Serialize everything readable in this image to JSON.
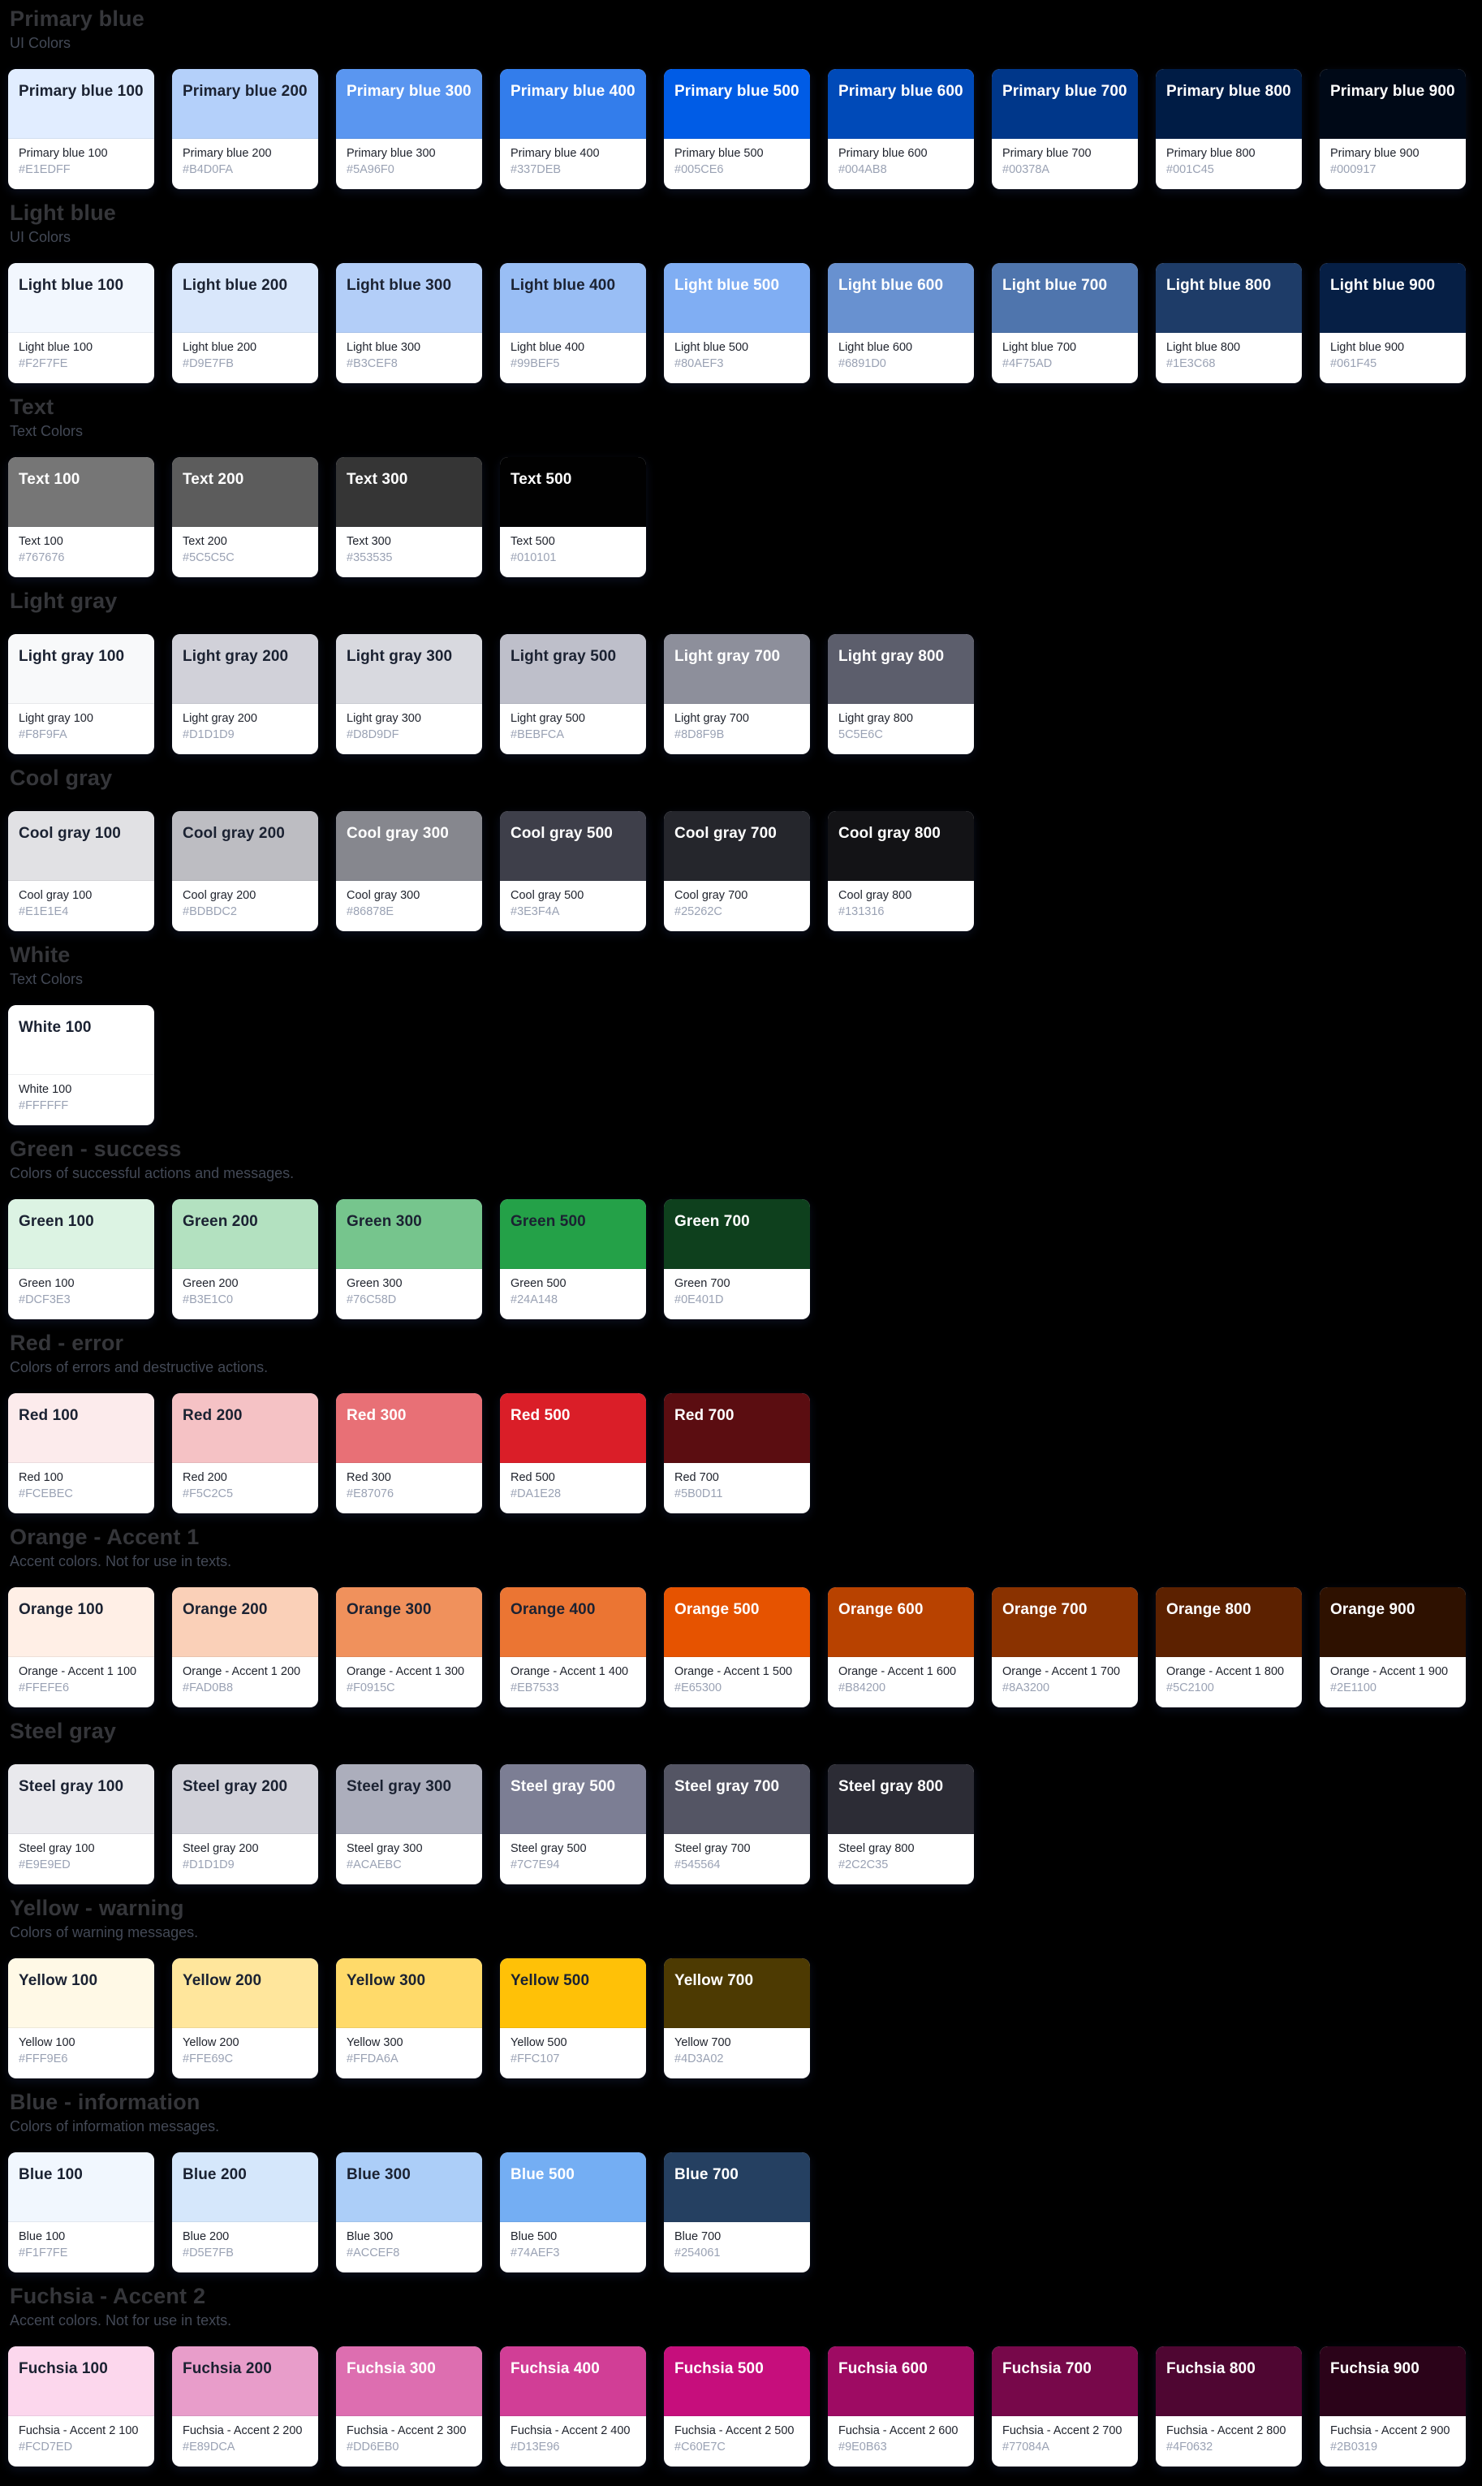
{
  "page": {
    "background": "#000000"
  },
  "sections": [
    {
      "title": "Primary blue",
      "subtitle": "UI Colors",
      "swatches": [
        {
          "title": "Primary blue 100",
          "name": "Primary blue 100",
          "hex": "#E1EDFF",
          "label_style": "dark"
        },
        {
          "title": "Primary blue 200",
          "name": "Primary blue 200",
          "hex": "#B4D0FA",
          "label_style": "dark"
        },
        {
          "title": "Primary blue 300",
          "name": "Primary blue 300",
          "hex": "#5A96F0",
          "label_style": "light"
        },
        {
          "title": "Primary blue 400",
          "name": "Primary blue 400",
          "hex": "#337DEB",
          "label_style": "light"
        },
        {
          "title": "Primary blue 500",
          "name": "Primary blue 500",
          "hex": "#005CE6",
          "label_style": "light"
        },
        {
          "title": "Primary blue 600",
          "name": "Primary blue 600",
          "hex": "#004AB8",
          "label_style": "light"
        },
        {
          "title": "Primary blue 700",
          "name": "Primary blue 700",
          "hex": "#00378A",
          "label_style": "light"
        },
        {
          "title": "Primary blue 800",
          "name": "Primary blue 800",
          "hex": "#001C45",
          "label_style": "light"
        },
        {
          "title": "Primary blue 900",
          "name": "Primary blue 900",
          "hex": "#000917",
          "label_style": "light"
        }
      ]
    },
    {
      "title": "Light blue",
      "subtitle": "UI Colors",
      "swatches": [
        {
          "title": "Light blue 100",
          "name": "Light blue 100",
          "hex": "#F2F7FE",
          "label_style": "dark"
        },
        {
          "title": "Light blue 200",
          "name": "Light blue 200",
          "hex": "#D9E7FB",
          "label_style": "dark"
        },
        {
          "title": "Light blue 300",
          "name": "Light blue 300",
          "hex": "#B3CEF8",
          "label_style": "dark"
        },
        {
          "title": "Light blue 400",
          "name": "Light blue 400",
          "hex": "#99BEF5",
          "label_style": "dark"
        },
        {
          "title": "Light blue 500",
          "name": "Light blue 500",
          "hex": "#80AEF3",
          "label_style": "light"
        },
        {
          "title": "Light blue 600",
          "name": "Light blue 600",
          "hex": "#6891D0",
          "label_style": "light"
        },
        {
          "title": "Light blue 700",
          "name": "Light blue 700",
          "hex": "#4F75AD",
          "label_style": "light"
        },
        {
          "title": "Light blue 800",
          "name": "Light blue 800",
          "hex": "#1E3C68",
          "label_style": "light"
        },
        {
          "title": "Light blue 900",
          "name": "Light blue 900",
          "hex": "#061F45",
          "label_style": "light"
        }
      ]
    },
    {
      "title": "Text",
      "subtitle": "Text Colors",
      "swatches": [
        {
          "title": "Text 100",
          "name": "Text 100",
          "hex": "#767676",
          "label_style": "light"
        },
        {
          "title": "Text 200",
          "name": "Text 200",
          "hex": "#5C5C5C",
          "label_style": "light"
        },
        {
          "title": "Text 300",
          "name": "Text 300",
          "hex": "#353535",
          "label_style": "light"
        },
        {
          "title": "Text 500",
          "name": "Text 500",
          "hex": "#010101",
          "label_style": "light"
        }
      ]
    },
    {
      "title": "Light gray",
      "subtitle": null,
      "swatches": [
        {
          "title": "Light gray 100",
          "name": "Light gray 100",
          "hex": "#F8F9FA",
          "label_style": "dark"
        },
        {
          "title": "Light gray 200",
          "name": "Light gray 200",
          "hex": "#D1D1D9",
          "label_style": "dark"
        },
        {
          "title": "Light gray 300",
          "name": "Light gray 300",
          "hex": "#D8D9DF",
          "label_style": "dark"
        },
        {
          "title": "Light gray 500",
          "name": "Light gray 500",
          "hex": "#BEBFCA",
          "label_style": "dark"
        },
        {
          "title": "Light gray 700",
          "name": "Light gray 700",
          "hex": "#8D8F9B",
          "label_style": "light"
        },
        {
          "title": "Light gray 800",
          "name": "Light gray 800",
          "hex": "5C5E6C",
          "label_style": "light"
        }
      ]
    },
    {
      "title": "Cool gray",
      "subtitle": null,
      "swatches": [
        {
          "title": "Cool gray 100",
          "name": "Cool gray 100",
          "hex": "#E1E1E4",
          "label_style": "dark"
        },
        {
          "title": "Cool gray 200",
          "name": "Cool gray 200",
          "hex": "#BDBDC2",
          "label_style": "dark"
        },
        {
          "title": "Cool gray 300",
          "name": "Cool gray 300",
          "hex": "#86878E",
          "label_style": "light"
        },
        {
          "title": "Cool gray 500",
          "name": "Cool gray 500",
          "hex": "#3E3F4A",
          "label_style": "light"
        },
        {
          "title": "Cool gray 700",
          "name": "Cool gray 700",
          "hex": "#25262C",
          "label_style": "light"
        },
        {
          "title": "Cool gray 800",
          "name": "Cool gray 800",
          "hex": "#131316",
          "label_style": "light"
        }
      ]
    },
    {
      "title": "White",
      "subtitle": "Text Colors",
      "swatches": [
        {
          "title": "White 100",
          "name": "White 100",
          "hex": "#FFFFFF",
          "label_style": "dark"
        }
      ]
    },
    {
      "title": "Green - success",
      "subtitle": "Colors of successful actions and messages.",
      "swatches": [
        {
          "title": "Green 100",
          "name": "Green 100",
          "hex": "#DCF3E3",
          "label_style": "dark"
        },
        {
          "title": "Green 200",
          "name": "Green 200",
          "hex": "#B3E1C0",
          "label_style": "dark"
        },
        {
          "title": "Green 300",
          "name": "Green 300",
          "hex": "#76C58D",
          "label_style": "dark"
        },
        {
          "title": "Green 500",
          "name": "Green 500",
          "hex": "#24A148",
          "label_style": "dark"
        },
        {
          "title": "Green 700",
          "name": "Green 700",
          "hex": "#0E401D",
          "label_style": "light"
        }
      ]
    },
    {
      "title": "Red - error",
      "subtitle": "Colors of errors and destructive actions.",
      "swatches": [
        {
          "title": "Red 100",
          "name": "Red 100",
          "hex": "#FCEBEC",
          "label_style": "dark"
        },
        {
          "title": "Red 200",
          "name": "Red 200",
          "hex": "#F5C2C5",
          "label_style": "dark"
        },
        {
          "title": "Red 300",
          "name": "Red 300",
          "hex": "#E87076",
          "label_style": "light"
        },
        {
          "title": "Red 500",
          "name": "Red 500",
          "hex": "#DA1E28",
          "label_style": "light"
        },
        {
          "title": "Red 700",
          "name": "Red 700",
          "hex": "#5B0D11",
          "label_style": "light"
        }
      ]
    },
    {
      "title": "Orange - Accent 1",
      "subtitle": "Accent colors. Not for use in texts.",
      "swatches": [
        {
          "title": "Orange 100",
          "name": "Orange - Accent 1 100",
          "hex": "#FFEFE6",
          "label_style": "dark"
        },
        {
          "title": "Orange 200",
          "name": "Orange - Accent 1 200",
          "hex": "#FAD0B8",
          "label_style": "dark"
        },
        {
          "title": "Orange 300",
          "name": "Orange - Accent 1 300",
          "hex": "#F0915C",
          "label_style": "dark"
        },
        {
          "title": "Orange 400",
          "name": "Orange - Accent 1 400",
          "hex": "#EB7533",
          "label_style": "dark"
        },
        {
          "title": "Orange 500",
          "name": "Orange - Accent 1 500",
          "hex": "#E65300",
          "label_style": "light"
        },
        {
          "title": "Orange 600",
          "name": "Orange - Accent 1 600",
          "hex": "#B84200",
          "label_style": "light"
        },
        {
          "title": "Orange 700",
          "name": "Orange - Accent 1 700",
          "hex": "#8A3200",
          "label_style": "light"
        },
        {
          "title": "Orange 800",
          "name": "Orange - Accent 1 800",
          "hex": "#5C2100",
          "label_style": "light"
        },
        {
          "title": "Orange 900",
          "name": "Orange - Accent 1 900",
          "hex": "#2E1100",
          "label_style": "light"
        }
      ]
    },
    {
      "title": "Steel gray",
      "subtitle": null,
      "swatches": [
        {
          "title": "Steel gray 100",
          "name": "Steel gray 100",
          "hex": "#E9E9ED",
          "label_style": "dark"
        },
        {
          "title": "Steel gray 200",
          "name": "Steel gray 200",
          "hex": "#D1D1D9",
          "label_style": "dark"
        },
        {
          "title": "Steel gray 300",
          "name": "Steel gray 300",
          "hex": "#ACAEBC",
          "label_style": "dark"
        },
        {
          "title": "Steel gray 500",
          "name": "Steel gray 500",
          "hex": "#7C7E94",
          "label_style": "light"
        },
        {
          "title": "Steel gray 700",
          "name": "Steel gray 700",
          "hex": "#545564",
          "label_style": "light"
        },
        {
          "title": "Steel gray 800",
          "name": "Steel gray 800",
          "hex": "#2C2C35",
          "label_style": "light"
        }
      ]
    },
    {
      "title": "Yellow - warning",
      "subtitle": "Colors of warning messages.",
      "swatches": [
        {
          "title": "Yellow 100",
          "name": "Yellow 100",
          "hex": "#FFF9E6",
          "label_style": "dark"
        },
        {
          "title": "Yellow 200",
          "name": "Yellow 200",
          "hex": "#FFE69C",
          "label_style": "dark"
        },
        {
          "title": "Yellow 300",
          "name": "Yellow 300",
          "hex": "#FFDA6A",
          "label_style": "dark"
        },
        {
          "title": "Yellow 500",
          "name": "Yellow 500",
          "hex": "#FFC107",
          "label_style": "dark"
        },
        {
          "title": "Yellow 700",
          "name": "Yellow 700",
          "hex": "#4D3A02",
          "label_style": "light"
        }
      ]
    },
    {
      "title": "Blue - information",
      "subtitle": "Colors of information messages.",
      "swatches": [
        {
          "title": "Blue 100",
          "name": "Blue 100",
          "hex": "#F1F7FE",
          "label_style": "dark"
        },
        {
          "title": "Blue 200",
          "name": "Blue 200",
          "hex": "#D5E7FB",
          "label_style": "dark"
        },
        {
          "title": "Blue 300",
          "name": "Blue 300",
          "hex": "#ACCEF8",
          "label_style": "dark"
        },
        {
          "title": "Blue 500",
          "name": "Blue 500",
          "hex": "#74AEF3",
          "label_style": "light"
        },
        {
          "title": "Blue 700",
          "name": "Blue 700",
          "hex": "#254061",
          "label_style": "light"
        }
      ]
    },
    {
      "title": "Fuchsia - Accent 2",
      "subtitle": "Accent colors. Not for use in texts.",
      "swatches": [
        {
          "title": "Fuchsia 100",
          "name": "Fuchsia - Accent 2 100",
          "hex": "#FCD7ED",
          "label_style": "dark"
        },
        {
          "title": "Fuchsia 200",
          "name": "Fuchsia - Accent 2 200",
          "hex": "#E89DCA",
          "label_style": "dark"
        },
        {
          "title": "Fuchsia 300",
          "name": "Fuchsia - Accent 2 300",
          "hex": "#DD6EB0",
          "label_style": "light"
        },
        {
          "title": "Fuchsia 400",
          "name": "Fuchsia - Accent 2 400",
          "hex": "#D13E96",
          "label_style": "light"
        },
        {
          "title": "Fuchsia 500",
          "name": "Fuchsia - Accent 2 500",
          "hex": "#C60E7C",
          "label_style": "light"
        },
        {
          "title": "Fuchsia 600",
          "name": "Fuchsia - Accent 2 600",
          "hex": "#9E0B63",
          "label_style": "light"
        },
        {
          "title": "Fuchsia 700",
          "name": "Fuchsia - Accent 2 700",
          "hex": "#77084A",
          "label_style": "light"
        },
        {
          "title": "Fuchsia 800",
          "name": "Fuchsia - Accent 2 800",
          "hex": "#4F0632",
          "label_style": "light"
        },
        {
          "title": "Fuchsia 900",
          "name": "Fuchsia - Accent 2 900",
          "hex": "#2B0319",
          "label_style": "light"
        }
      ]
    }
  ]
}
